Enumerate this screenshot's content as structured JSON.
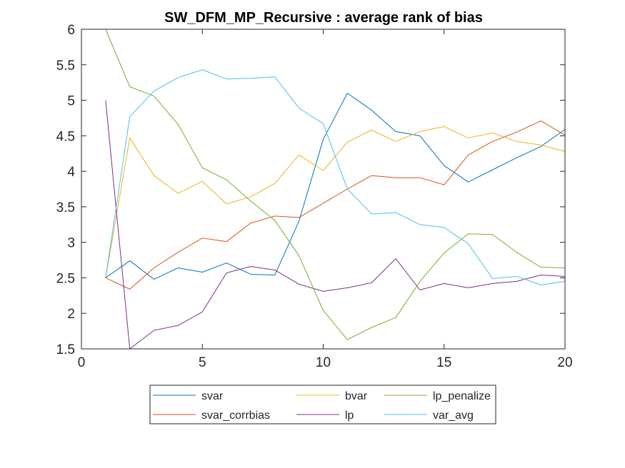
{
  "chart_data": {
    "type": "line",
    "title": "SW_DFM_MP_Recursive : average rank of bias",
    "xlabel": "",
    "ylabel": "",
    "xlim": [
      0,
      20
    ],
    "ylim": [
      1.5,
      6
    ],
    "xticks": [
      0,
      5,
      10,
      15,
      20
    ],
    "yticks": [
      1.5,
      2,
      2.5,
      3,
      3.5,
      4,
      4.5,
      5,
      5.5,
      6
    ],
    "xtick_labels": [
      "0",
      "5",
      "10",
      "15",
      "20"
    ],
    "ytick_labels": [
      "1.5",
      "2",
      "2.5",
      "3",
      "3.5",
      "4",
      "4.5",
      "5",
      "5.5",
      "6"
    ],
    "grid": false,
    "legend_position": "bottom-outside",
    "legend_columns": 3,
    "x": [
      1,
      2,
      3,
      4,
      5,
      6,
      7,
      8,
      9,
      10,
      11,
      12,
      13,
      14,
      15,
      16,
      17,
      18,
      19,
      20
    ],
    "series": [
      {
        "name": "svar",
        "color": "#0072BD",
        "values": [
          2.5,
          2.74,
          2.48,
          2.64,
          2.58,
          2.71,
          2.55,
          2.54,
          3.3,
          4.45,
          5.1,
          4.86,
          4.56,
          4.5,
          4.08,
          3.85,
          4.02,
          4.19,
          4.35,
          4.59
        ]
      },
      {
        "name": "svar_corrbias",
        "color": "#D95319",
        "values": [
          2.5,
          2.34,
          2.64,
          2.86,
          3.06,
          3.01,
          3.27,
          3.37,
          3.35,
          3.55,
          3.75,
          3.94,
          3.91,
          3.91,
          3.81,
          4.23,
          4.42,
          4.55,
          4.71,
          4.51
        ]
      },
      {
        "name": "bvar",
        "color": "#EDB120",
        "values": [
          2.5,
          4.47,
          3.94,
          3.69,
          3.86,
          3.54,
          3.64,
          3.83,
          4.23,
          4.01,
          4.41,
          4.58,
          4.42,
          4.56,
          4.63,
          4.47,
          4.54,
          4.42,
          4.37,
          4.28
        ]
      },
      {
        "name": "lp",
        "color": "#7E2F8E",
        "values": [
          5.0,
          1.5,
          1.76,
          1.83,
          2.02,
          2.57,
          2.66,
          2.61,
          2.41,
          2.31,
          2.36,
          2.43,
          2.77,
          2.33,
          2.42,
          2.36,
          2.42,
          2.45,
          2.54,
          2.52
        ]
      },
      {
        "name": "lp_penalize",
        "color": "#77AC30",
        "values": [
          6.0,
          5.19,
          5.06,
          4.66,
          4.05,
          3.88,
          3.58,
          3.31,
          2.81,
          2.04,
          1.63,
          1.8,
          1.94,
          2.45,
          2.85,
          3.12,
          3.11,
          2.86,
          2.65,
          2.64
        ]
      },
      {
        "name": "var_avg",
        "color": "#4DBEEE",
        "values": [
          2.5,
          4.77,
          5.13,
          5.32,
          5.43,
          5.3,
          5.31,
          5.33,
          4.89,
          4.67,
          3.75,
          3.4,
          3.42,
          3.25,
          3.21,
          2.98,
          2.49,
          2.52,
          2.4,
          2.45
        ]
      }
    ],
    "legend_order": [
      "svar",
      "bvar",
      "lp_penalize",
      "svar_corrbias",
      "lp",
      "var_avg"
    ]
  }
}
